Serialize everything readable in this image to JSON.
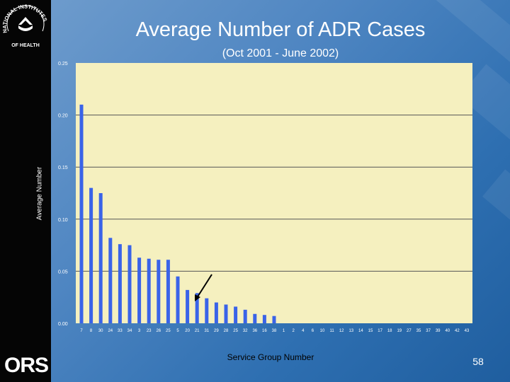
{
  "slide": {
    "title": "Average Number of ADR Cases",
    "subtitle": "(Oct 2001 - June 2002)",
    "page_number": "58",
    "logo_text": "ORS",
    "seal_text": "NATIONAL INSTITUTES OF HEALTH"
  },
  "colors": {
    "plot_background": "#f5f0bf",
    "bar": "#3a63e8",
    "gridline": "#555555",
    "sidebar": "#050505"
  },
  "chart_data": {
    "type": "bar",
    "title": "Average Number of ADR Cases",
    "subtitle": "(Oct 2001 - June 2002)",
    "xlabel": "Service Group Number",
    "ylabel": "Average Number",
    "ylim": [
      0,
      0.25
    ],
    "yticks": [
      "0.00",
      "0.05",
      "0.10",
      "0.15",
      "0.20",
      "0.25"
    ],
    "grid": true,
    "categories": [
      "7",
      "8",
      "30",
      "24",
      "33",
      "34",
      "3",
      "23",
      "26",
      "25",
      "5",
      "20",
      "21",
      "31",
      "29",
      "28",
      "25",
      "32",
      "36",
      "16",
      "38",
      "1",
      "2",
      "4",
      "6",
      "10",
      "11",
      "12",
      "13",
      "14",
      "15",
      "17",
      "18",
      "19",
      "27",
      "35",
      "37",
      "39",
      "40",
      "42",
      "43"
    ],
    "values": [
      0.21,
      0.13,
      0.125,
      0.082,
      0.076,
      0.075,
      0.063,
      0.062,
      0.061,
      0.061,
      0.045,
      0.032,
      0.029,
      0.024,
      0.02,
      0.018,
      0.016,
      0.013,
      0.009,
      0.008,
      0.007,
      0,
      0,
      0,
      0,
      0,
      0,
      0,
      0,
      0,
      0,
      0,
      0,
      0,
      0,
      0,
      0,
      0,
      0,
      0,
      0
    ],
    "annotation": "arrow pointing to bar for group 21"
  }
}
